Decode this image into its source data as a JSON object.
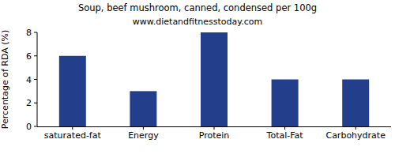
{
  "chart_data": {
    "type": "bar",
    "title": "Soup, beef mushroom, canned, condensed per 100g",
    "subtitle": "www.dietandfitnesstoday.com",
    "y_label": "Percentage of RDA (%)",
    "categories": [
      "saturated-fat",
      "Energy",
      "Protein",
      "Total-Fat",
      "Carbohydrate"
    ],
    "values": [
      6,
      3,
      8,
      4,
      4
    ],
    "color": "#233e8b",
    "ylim": [
      0,
      8
    ],
    "yticks": [
      0,
      2,
      4,
      6,
      8
    ],
    "grid": false
  }
}
